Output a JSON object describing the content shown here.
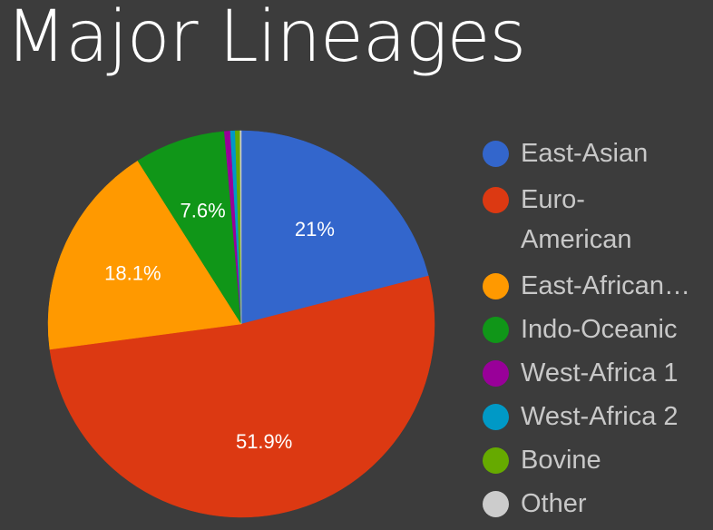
{
  "title": "Major Lineages",
  "colors": {
    "background": "#3c3c3c",
    "title": "#ffffff",
    "legend_text": "#c8c8c8",
    "slice_label": "#ffffff"
  },
  "chart_data": {
    "type": "pie",
    "title": "Major Lineages",
    "legend_position": "right",
    "slices": [
      {
        "label": "East-Asian",
        "display_label": "East-Asian",
        "value": 21.0,
        "value_label": "21%",
        "color": "#3366cc"
      },
      {
        "label": "Euro-American",
        "display_label": "Euro-American",
        "value": 51.9,
        "value_label": "51.9%",
        "color": "#dc3912"
      },
      {
        "label": "East-African…",
        "display_label": "East-African…",
        "value": 18.1,
        "value_label": "18.1%",
        "color": "#ff9900"
      },
      {
        "label": "Indo-Oceanic",
        "display_label": "Indo-Oceanic",
        "value": 7.6,
        "value_label": "7.6%",
        "color": "#109618"
      },
      {
        "label": "West-Africa 1",
        "display_label": "West-Africa 1",
        "value": 0.5,
        "value_label": "",
        "color": "#990099"
      },
      {
        "label": "West-Africa 2",
        "display_label": "West-Africa 2",
        "value": 0.4,
        "value_label": "",
        "color": "#0099c6"
      },
      {
        "label": "Bovine",
        "display_label": "Bovine",
        "value": 0.4,
        "value_label": "",
        "color": "#66aa00"
      },
      {
        "label": "Other",
        "display_label": "Other",
        "value": 0.1,
        "value_label": "",
        "color": "#cccccc"
      }
    ]
  }
}
